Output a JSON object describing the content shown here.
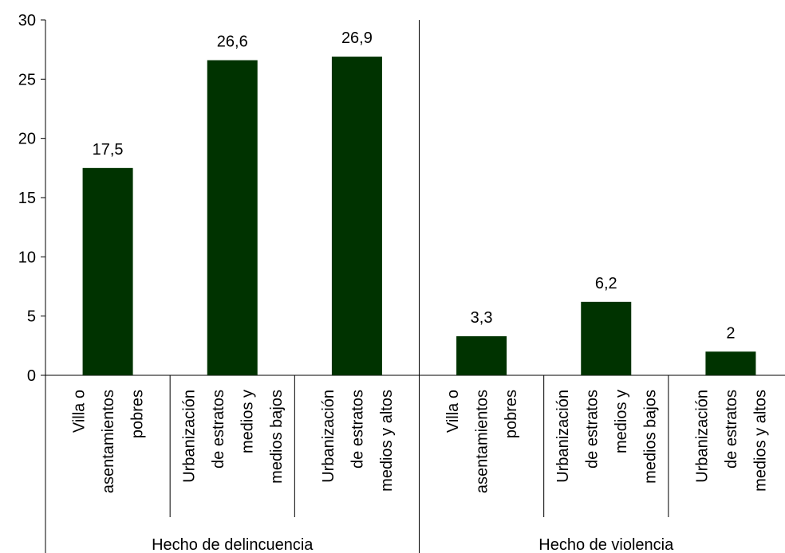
{
  "chart_data": {
    "type": "bar",
    "groups": [
      {
        "name": "Hecho de delincuencia",
        "categories": [
          [
            "Villa o",
            "asentamientos",
            "pobres"
          ],
          [
            "Urbanización",
            "de estratos",
            "medios y",
            "medios bajos"
          ],
          [
            "Urbanización",
            "de estratos",
            "medios y altos"
          ]
        ],
        "values": [
          17.5,
          26.6,
          26.9
        ],
        "value_labels": [
          "17,5",
          "26,6",
          "26,9"
        ]
      },
      {
        "name": "Hecho de violencia",
        "categories": [
          [
            "Villa o",
            "asentamientos",
            "pobres"
          ],
          [
            "Urbanización",
            "de estratos",
            "medios y",
            "medios bajos"
          ],
          [
            "Urbanización",
            "de estratos",
            "medios y altos"
          ]
        ],
        "values": [
          3.3,
          6.2,
          2
        ],
        "value_labels": [
          "3,3",
          "6,2",
          "2"
        ]
      }
    ],
    "y_ticks": [
      "0",
      "5",
      "10",
      "15",
      "20",
      "25",
      "30"
    ],
    "ylim": [
      0,
      30
    ],
    "bar_color": "#003300",
    "grid": false,
    "legend": "none"
  }
}
